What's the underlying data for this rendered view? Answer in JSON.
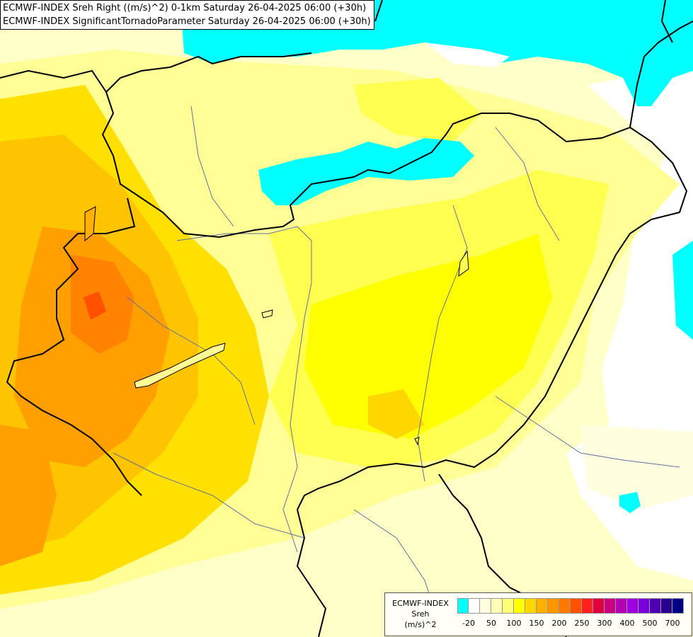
{
  "header": {
    "line1": "ECMWF-INDEX Sreh Right ((m/s)^2) 0-1km Saturday 26-04-2025 06:00 (+30h)",
    "line2": "ECMWF-INDEX SignificantTornadoParameter Saturday 26-04-2025 06:00 (+30h)"
  },
  "legend": {
    "title_model": "ECMWF-INDEX",
    "title_param": "Sreh",
    "title_unit": "(m/s)^2",
    "colors": [
      "#00ffff",
      "#ffffff",
      "#ffffe0",
      "#ffffb4",
      "#ffff78",
      "#ffff00",
      "#ffd700",
      "#ffb000",
      "#ff9600",
      "#ff7800",
      "#ff5000",
      "#ff2020",
      "#e00040",
      "#c80080",
      "#b400b4",
      "#a000e0",
      "#7800dc",
      "#5000b4",
      "#28008c",
      "#000080"
    ],
    "ticks": [
      {
        "label": "-20",
        "slot": 1
      },
      {
        "label": "50",
        "slot": 3
      },
      {
        "label": "100",
        "slot": 5
      },
      {
        "label": "150",
        "slot": 7
      },
      {
        "label": "200",
        "slot": 9
      },
      {
        "label": "250",
        "slot": 11
      },
      {
        "label": "300",
        "slot": 13
      },
      {
        "label": "400",
        "slot": 15
      },
      {
        "label": "500",
        "slot": 17
      },
      {
        "label": "700",
        "slot": 19
      }
    ]
  }
}
